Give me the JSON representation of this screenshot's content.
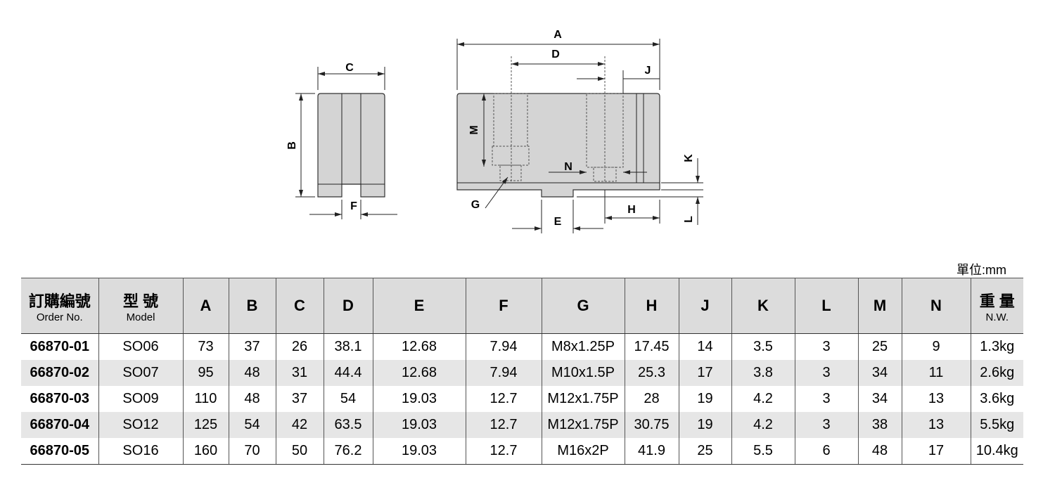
{
  "diagram": {
    "labels": {
      "A": "A",
      "B": "B",
      "C": "C",
      "D": "D",
      "E": "E",
      "F": "F",
      "G": "G",
      "H": "H",
      "J": "J",
      "K": "K",
      "L": "L",
      "M": "M",
      "N": "N"
    }
  },
  "unit": "單位:mm",
  "table": {
    "header": [
      [
        "訂購編號",
        "Order No."
      ],
      [
        "型 號",
        "Model"
      ],
      [
        "A"
      ],
      [
        "B"
      ],
      [
        "C"
      ],
      [
        "D"
      ],
      [
        "E"
      ],
      [
        "F"
      ],
      [
        "G"
      ],
      [
        "H"
      ],
      [
        "J"
      ],
      [
        "K"
      ],
      [
        "L"
      ],
      [
        "M"
      ],
      [
        "N"
      ],
      [
        "重 量",
        "N.W."
      ]
    ],
    "rows": [
      [
        "66870-01",
        "SO06",
        73,
        37,
        26,
        38.1,
        12.68,
        7.94,
        "M8x1.25P",
        17.45,
        14,
        3.5,
        3,
        25,
        9,
        "1.3kg"
      ],
      [
        "66870-02",
        "SO07",
        95,
        48,
        31,
        44.4,
        12.68,
        7.94,
        "M10x1.5P",
        25.3,
        17,
        3.8,
        3,
        34,
        11,
        "2.6kg"
      ],
      [
        "66870-03",
        "SO09",
        110,
        48,
        37,
        54,
        19.03,
        12.7,
        "M12x1.75P",
        28,
        19,
        4.2,
        3,
        34,
        13,
        "3.6kg"
      ],
      [
        "66870-04",
        "SO12",
        125,
        54,
        42,
        63.5,
        19.03,
        12.7,
        "M12x1.75P",
        30.75,
        19,
        4.2,
        3,
        38,
        13,
        "5.5kg"
      ],
      [
        "66870-05",
        "SO16",
        160,
        70,
        50,
        76.2,
        19.03,
        12.7,
        "M16x2P",
        41.9,
        25,
        5.5,
        6,
        48,
        17,
        "10.4kg"
      ]
    ]
  }
}
